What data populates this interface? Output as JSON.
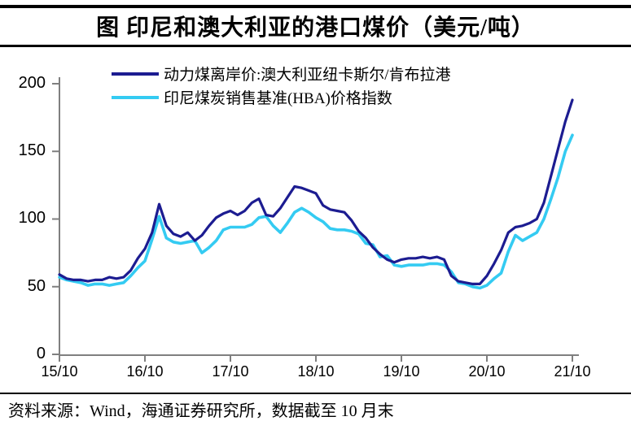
{
  "title": "图 印尼和澳大利亚的港口煤价（美元/吨）",
  "legend": [
    {
      "label": "动力煤离岸价:澳大利亚纽卡斯尔/肯布拉港",
      "color": "#1c1c91"
    },
    {
      "label": "印尼煤炭销售基准(HBA)价格指数",
      "color": "#34cbf2"
    }
  ],
  "footer": {
    "text": "资料来源：Wind，海通证券研究所，数据截至 10 月末"
  },
  "colors": {
    "axis": "#7f7f7f",
    "text": "#000000",
    "background": "#ffffff"
  },
  "chart_data": {
    "type": "line",
    "title": "图 印尼和澳大利亚的港口煤价（美元/吨）",
    "unit": "美元/吨",
    "x_frequency": "monthly",
    "x_start": "2015-10",
    "x_end": "2021-10",
    "x_tick_labels": [
      "15/10",
      "16/10",
      "17/10",
      "18/10",
      "19/10",
      "20/10",
      "21/10"
    ],
    "y_ticks": [
      0,
      50,
      100,
      150,
      200
    ],
    "ylim": [
      0,
      200
    ],
    "grid": false,
    "legend_position": "top",
    "series": [
      {
        "name": "动力煤离岸价:澳大利亚纽卡斯尔/肯布拉港",
        "color": "#1c1c91",
        "values": [
          59,
          56,
          55,
          55,
          54,
          55,
          55,
          57,
          56,
          57,
          62,
          71,
          78,
          90,
          111,
          95,
          89,
          87,
          90,
          84,
          88,
          95,
          101,
          104,
          106,
          103,
          106,
          112,
          115,
          103,
          102,
          108,
          116,
          124,
          123,
          121,
          119,
          110,
          107,
          106,
          105,
          99,
          91,
          86,
          79,
          74,
          70,
          68,
          70,
          71,
          71,
          72,
          71,
          72,
          70,
          58,
          54,
          53,
          52,
          52,
          58,
          67,
          77,
          90,
          94,
          95,
          97,
          100,
          112,
          132,
          152,
          172,
          188
        ]
      },
      {
        "name": "印尼煤炭销售基准(HBA)价格指数",
        "color": "#34cbf2",
        "values": [
          57,
          55,
          54,
          53,
          51,
          52,
          52,
          51,
          52,
          53,
          58,
          64,
          69,
          85,
          102,
          86,
          83,
          82,
          83,
          84,
          75,
          79,
          84,
          92,
          94,
          94,
          94,
          96,
          101,
          102,
          95,
          90,
          97,
          105,
          108,
          105,
          101,
          98,
          93,
          92,
          92,
          91,
          89,
          82,
          81,
          72,
          73,
          66,
          65,
          66,
          66,
          66,
          67,
          67,
          66,
          61,
          53,
          52,
          50,
          49,
          51,
          56,
          60,
          76,
          88,
          84,
          87,
          90,
          100,
          115,
          131,
          150,
          162
        ]
      }
    ]
  }
}
